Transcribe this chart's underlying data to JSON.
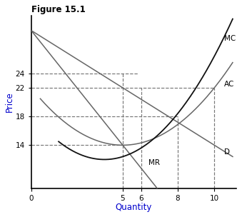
{
  "title": "Figure 15.1",
  "xlabel": "Quantity",
  "ylabel": "Price",
  "xlabel_color": "#0000cc",
  "ylabel_color": "#0000cc",
  "x_ticks": [
    0,
    5,
    6,
    8,
    10
  ],
  "y_ticks": [
    14,
    18,
    22,
    24
  ],
  "xlim": [
    0,
    11.2
  ],
  "ylim": [
    8,
    32
  ],
  "curve_color": "#666666",
  "mc_color": "#111111",
  "bg_color": "#ffffff",
  "title_fontsize": 8.5,
  "axis_label_fontsize": 8.5,
  "tick_fontsize": 7.5
}
